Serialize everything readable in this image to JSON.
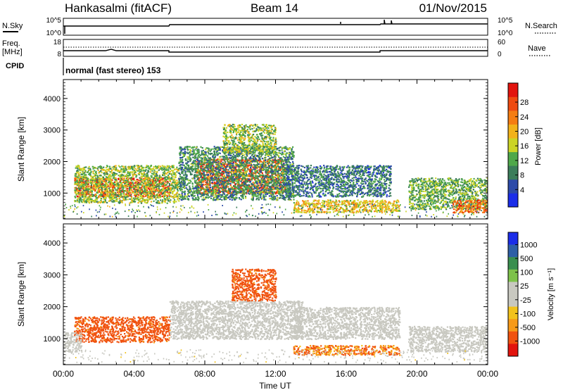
{
  "header": {
    "station": "Hankasalmi (fitACF)",
    "beam": "Beam 14",
    "date": "01/Nov/2015"
  },
  "top_panels": {
    "nsky": {
      "label": "N.Sky",
      "tick_hi": "10^5",
      "tick_lo": "10^0"
    },
    "nsearch": {
      "label": "N.Search",
      "tick_hi": "10^5",
      "tick_lo": "10^0"
    },
    "freq": {
      "label": "Freq.",
      "unit": "[MHz]",
      "tick_hi": "18",
      "tick_lo": "8"
    },
    "nave": {
      "label": "Nave",
      "tick_hi": "60",
      "tick_lo": "0"
    },
    "cpid": {
      "label": "CPID",
      "text": "normal (fast stereo) 153"
    }
  },
  "colors": {
    "power": [
      "#1b2de8",
      "#2c4aa8",
      "#3b7d5a",
      "#4fa84a",
      "#cbd426",
      "#f2b21a",
      "#f57d12",
      "#ef4a10",
      "#e2140e"
    ],
    "velocity": [
      "#e2140e",
      "#f0520f",
      "#f79a18",
      "#f2c21c",
      "#c8c8c0",
      "#c8c8c0",
      "#7ec24a",
      "#3a8f4f",
      "#2e5fa6",
      "#1b2de8"
    ]
  },
  "chart_data": [
    {
      "type": "heatmap",
      "title": "Power",
      "ylabel": "Slant Range [km]",
      "xlabel": "Time UT",
      "xlim_hours": [
        0,
        24
      ],
      "ylim": [
        180,
        4600
      ],
      "yticks": [
        "1000",
        "2000",
        "3000",
        "4000"
      ],
      "xticks": [
        "00:00",
        "04:00",
        "08:00",
        "12:00",
        "16:00",
        "20:00",
        "00:00"
      ],
      "colorbar": {
        "label": "Power [dB]",
        "ticks": [
          "4",
          "8",
          "12",
          "16",
          "20",
          "24",
          "28"
        ]
      },
      "regions": [
        {
          "t0": 0.6,
          "t1": 6.0,
          "r0": 900,
          "r1": 1500,
          "value_db": 27
        },
        {
          "t0": 0.6,
          "t1": 6.5,
          "r0": 700,
          "r1": 1900,
          "value_db": 14
        },
        {
          "t0": 7.5,
          "t1": 12.5,
          "r0": 1000,
          "r1": 2100,
          "value_db": 25
        },
        {
          "t0": 6.5,
          "t1": 13.0,
          "r0": 800,
          "r1": 2500,
          "value_db": 10
        },
        {
          "t0": 9.0,
          "t1": 12.0,
          "r0": 2300,
          "r1": 3200,
          "value_db": 14
        },
        {
          "t0": 13.0,
          "t1": 19.0,
          "r0": 400,
          "r1": 800,
          "value_db": 18
        },
        {
          "t0": 12.5,
          "t1": 18.5,
          "r0": 900,
          "r1": 1900,
          "value_db": 8
        },
        {
          "t0": 19.5,
          "t1": 24.0,
          "r0": 500,
          "r1": 1500,
          "value_db": 12
        },
        {
          "t0": 22.0,
          "t1": 24.0,
          "r0": 400,
          "r1": 800,
          "value_db": 24
        }
      ]
    },
    {
      "type": "heatmap",
      "title": "Velocity",
      "ylabel": "Slant Range [km]",
      "xlabel": "Time UT",
      "xlim_hours": [
        0,
        24
      ],
      "ylim": [
        180,
        4600
      ],
      "yticks": [
        "1000",
        "2000",
        "3000",
        "4000"
      ],
      "xticks": [
        "00:00",
        "04:00",
        "08:00",
        "12:00",
        "16:00",
        "20:00",
        "00:00"
      ],
      "colorbar": {
        "label": "Velocity [m s⁻¹]",
        "ticks": [
          "1000",
          "500",
          "100",
          "25",
          "-25",
          "-100",
          "-500",
          "-1000"
        ]
      },
      "regions": [
        {
          "t0": 0.6,
          "t1": 6.0,
          "r0": 900,
          "r1": 1700,
          "value_ms": -150
        },
        {
          "t0": 0.0,
          "t1": 1.0,
          "r0": 600,
          "r1": 1200,
          "value_ms": 0
        },
        {
          "t0": 6.0,
          "t1": 13.5,
          "r0": 1000,
          "r1": 2200,
          "value_ms": 0
        },
        {
          "t0": 9.5,
          "t1": 12.0,
          "r0": 2200,
          "r1": 3200,
          "value_ms": -150
        },
        {
          "t0": 13.0,
          "t1": 19.0,
          "r0": 500,
          "r1": 800,
          "value_ms": -100
        },
        {
          "t0": 13.0,
          "t1": 19.0,
          "r0": 1000,
          "r1": 2000,
          "value_ms": 0
        },
        {
          "t0": 19.5,
          "t1": 24.0,
          "r0": 600,
          "r1": 1400,
          "value_ms": 0
        }
      ]
    }
  ]
}
